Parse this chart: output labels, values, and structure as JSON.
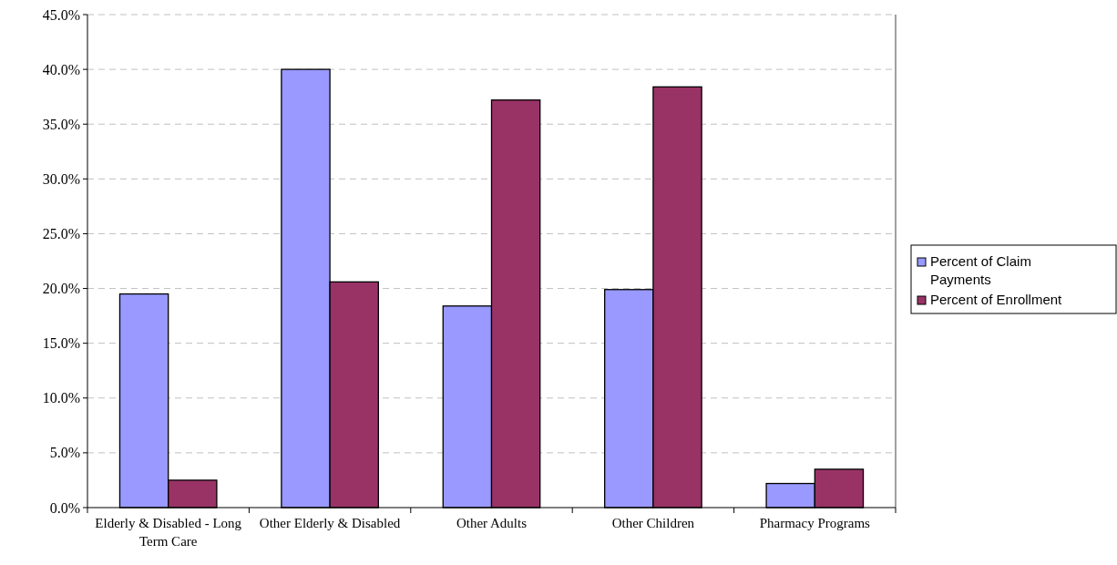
{
  "chart_data": {
    "type": "bar",
    "categories": [
      "Elderly & Disabled - Long Term Care",
      "Other Elderly & Disabled",
      "Other Adults",
      "Other Children",
      "Pharmacy Programs"
    ],
    "series": [
      {
        "name": "Percent of Claim Payments",
        "color": "#9999ff",
        "values": [
          19.5,
          40.0,
          18.4,
          19.9,
          2.2
        ]
      },
      {
        "name": "Percent of Enrollment",
        "color": "#993366",
        "values": [
          2.5,
          20.6,
          37.2,
          38.4,
          3.5
        ]
      }
    ],
    "ylim": [
      0,
      45
    ],
    "yticks": [
      {
        "value": 0,
        "label": "0.0%"
      },
      {
        "value": 5,
        "label": "5.0%"
      },
      {
        "value": 10,
        "label": "10.0%"
      },
      {
        "value": 15,
        "label": "15.0%"
      },
      {
        "value": 20,
        "label": "20.0%"
      },
      {
        "value": 25,
        "label": "25.0%"
      },
      {
        "value": 30,
        "label": "30.0%"
      },
      {
        "value": 35,
        "label": "35.0%"
      },
      {
        "value": 40,
        "label": "40.0%"
      },
      {
        "value": 45,
        "label": "45.0%"
      }
    ],
    "grid": "y",
    "legend": "right"
  }
}
